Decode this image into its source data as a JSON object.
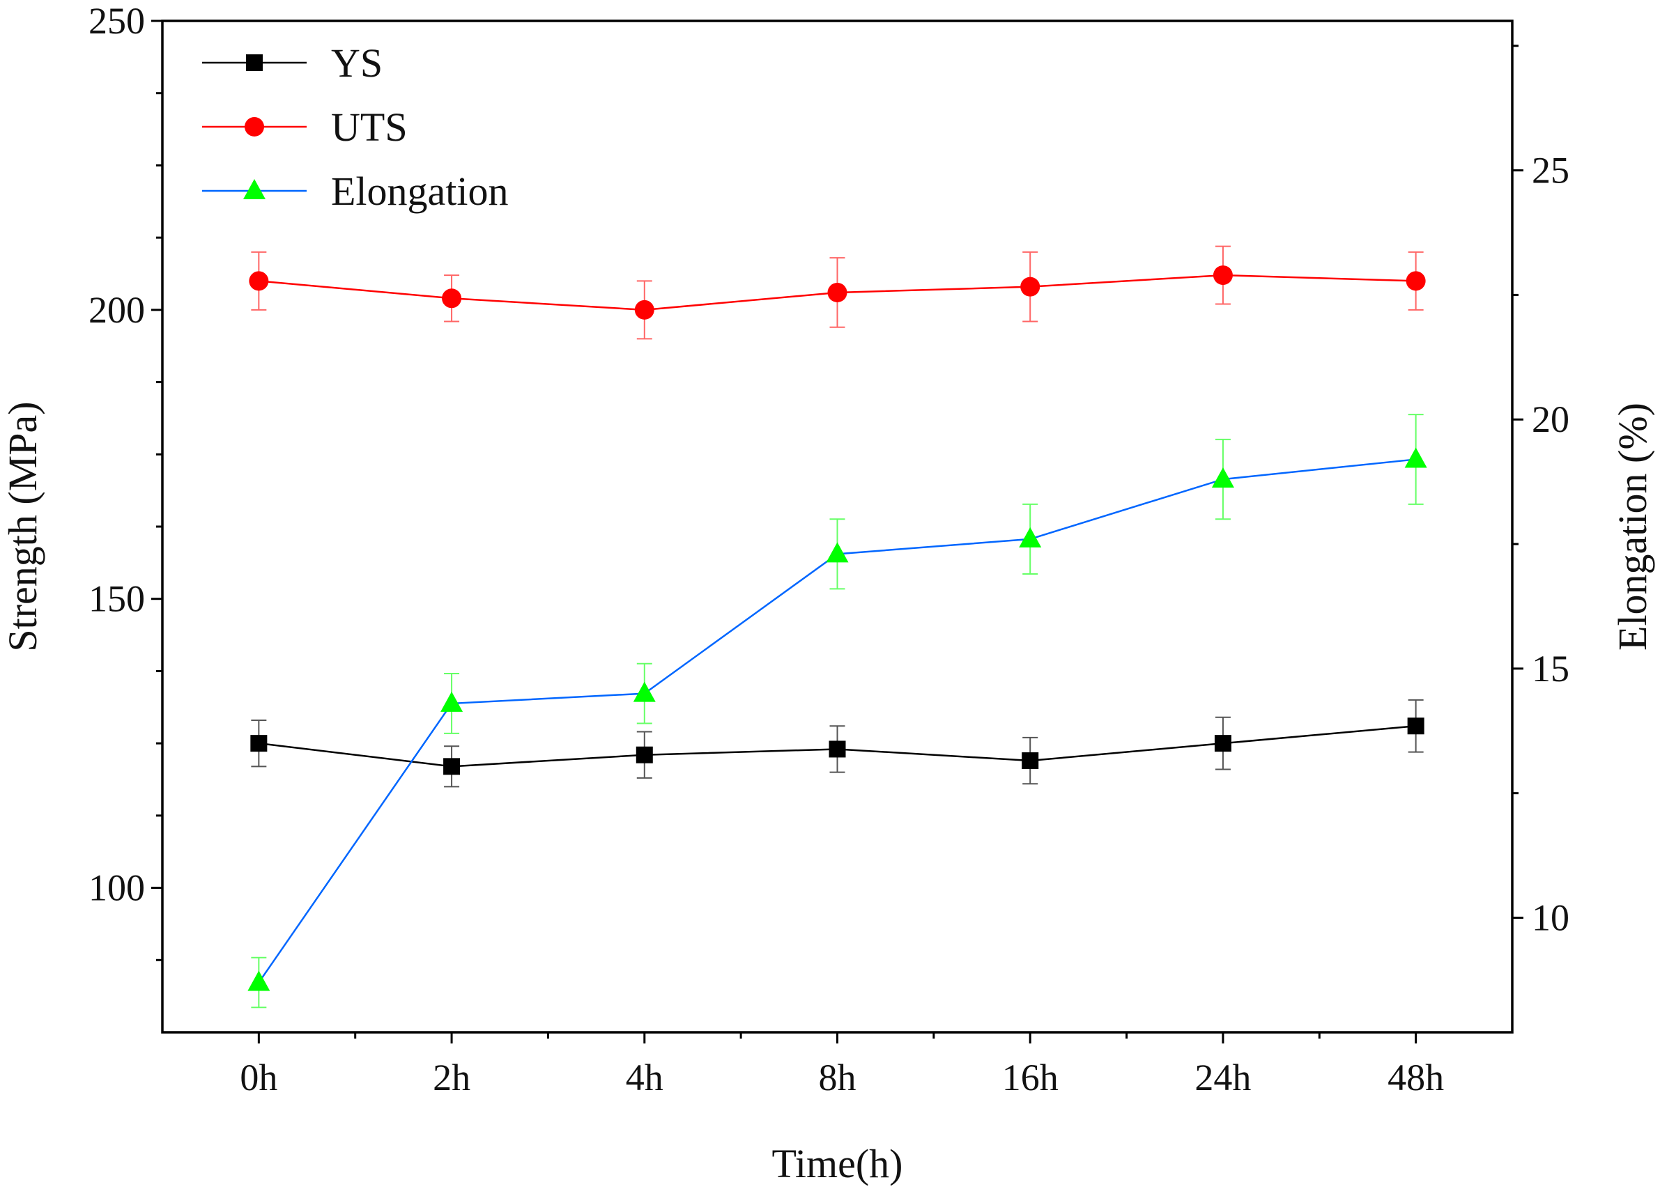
{
  "chart_data": {
    "type": "line",
    "title": "",
    "xlabel": "Time(h)",
    "ylabel": "Strength (MPa)",
    "y2label": "Elongation (%)",
    "categories": [
      "0h",
      "2h",
      "4h",
      "8h",
      "16h",
      "24h",
      "48h"
    ],
    "ylim": [
      75,
      250
    ],
    "y2lim": [
      7.7,
      28.0
    ],
    "yticks": [
      100,
      150,
      200,
      250
    ],
    "y2ticks": [
      10,
      15,
      20,
      25
    ],
    "legend": "top-left",
    "series": [
      {
        "name": "YS",
        "axis": "left",
        "color": "#000000",
        "marker": "square",
        "values": [
          125,
          121,
          123,
          124,
          122,
          125,
          128
        ],
        "errors": [
          4,
          3.5,
          4,
          4,
          4,
          4.5,
          4.5
        ]
      },
      {
        "name": "UTS",
        "axis": "left",
        "color": "#ff0000",
        "marker": "circle",
        "values": [
          205,
          202,
          200,
          203,
          204,
          206,
          205
        ],
        "errors": [
          5,
          4,
          5,
          6,
          6,
          5,
          5
        ]
      },
      {
        "name": "Elongation",
        "axis": "right",
        "color": "#0066ff",
        "markerColor": "#00ff00",
        "marker": "triangle",
        "values": [
          8.7,
          14.3,
          14.5,
          17.3,
          17.6,
          18.8,
          19.2
        ],
        "errors": [
          0.5,
          0.6,
          0.6,
          0.7,
          0.7,
          0.8,
          0.9
        ]
      }
    ]
  }
}
